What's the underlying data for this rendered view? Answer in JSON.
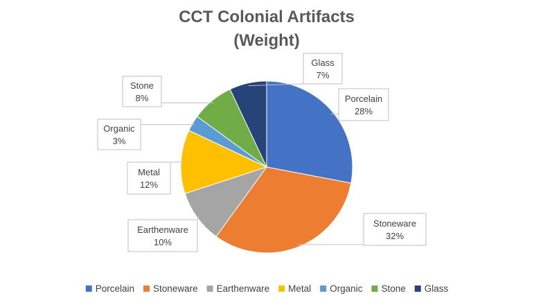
{
  "chart_data": {
    "type": "pie",
    "title_lines": [
      "CCT Colonial Artifacts",
      "(Weight)"
    ],
    "slices": [
      {
        "label": "Porcelain",
        "value": 28,
        "value_label": "28%",
        "color": "#4472C4"
      },
      {
        "label": "Stoneware",
        "value": 32,
        "value_label": "32%",
        "color": "#ED7D31"
      },
      {
        "label": "Earthenware",
        "value": 10,
        "value_label": "10%",
        "color": "#A5A5A5"
      },
      {
        "label": "Metal",
        "value": 12,
        "value_label": "12%",
        "color": "#FFC000"
      },
      {
        "label": "Organic",
        "value": 3,
        "value_label": "3%",
        "color": "#5B9BD5"
      },
      {
        "label": "Stone",
        "value": 8,
        "value_label": "8%",
        "color": "#70AD47"
      },
      {
        "label": "Glass",
        "value": 7,
        "value_label": "7%",
        "color": "#264478"
      }
    ],
    "start_angle": "12 o'clock",
    "direction": "clockwise",
    "legend_position": "bottom",
    "data_labels": "callouts with category name and percentage"
  }
}
